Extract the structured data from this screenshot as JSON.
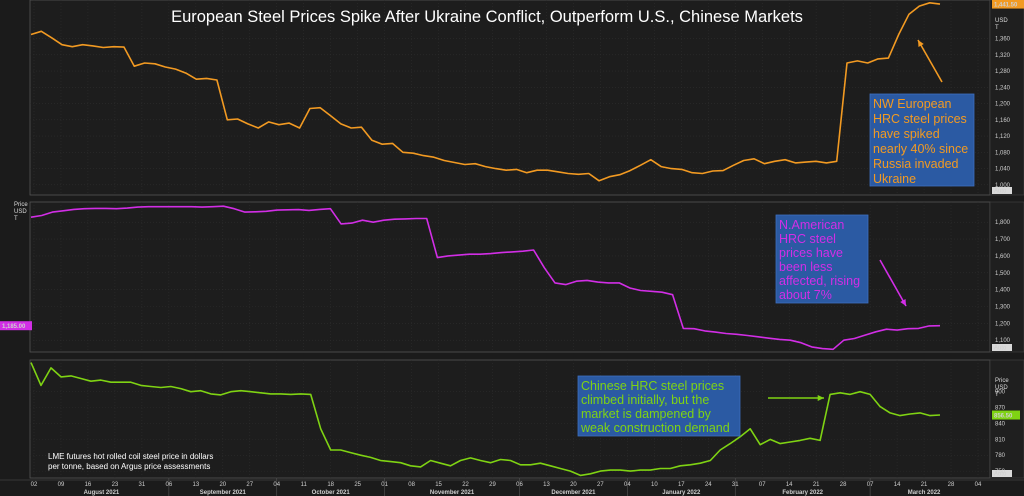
{
  "title": "European Steel Prices Spike After Ukraine Conflict, Outperform U.S., Chinese Markets",
  "footnote": [
    "LME futures hot rolled coil steel price in dollars",
    "per tonne, based on Argus price assessments"
  ],
  "x_axis": {
    "day_ticks": [
      "02",
      "09",
      "16",
      "23",
      "31",
      "06",
      "13",
      "20",
      "27",
      "04",
      "11",
      "18",
      "25",
      "01",
      "08",
      "15",
      "22",
      "29",
      "06",
      "13",
      "20",
      "27",
      "04",
      "10",
      "17",
      "24",
      "31",
      "07",
      "14",
      "21",
      "28",
      "07",
      "14",
      "21",
      "28",
      "04"
    ],
    "month_labels": [
      "August 2021",
      "September 2021",
      "October 2021",
      "November 2021",
      "December 2021",
      "January 2022",
      "February 2022",
      "March 2022"
    ]
  },
  "auto_label": "Auto",
  "colors": {
    "europe": "#f29a22",
    "us": "#d22ee6",
    "china": "#7fd313",
    "annotation_bg": "#2b5aa3",
    "title": "#ffffff"
  },
  "chart_data": [
    {
      "type": "line",
      "series": [
        {
          "values": [
            1370,
            1378,
            1362,
            1345,
            1340,
            1345,
            1342,
            1338,
            1340,
            1339,
            1292,
            1300,
            1298,
            1290,
            1285,
            1275,
            1260,
            1262,
            1258,
            1160,
            1162,
            1150,
            1140,
            1155,
            1148,
            1152,
            1140,
            1188,
            1190,
            1170,
            1150,
            1140,
            1142,
            1110,
            1100,
            1102,
            1080,
            1078,
            1072,
            1068,
            1060,
            1055,
            1050,
            1052,
            1045,
            1040,
            1036,
            1038,
            1030,
            1036,
            1036,
            1032,
            1028,
            1026,
            1028,
            1010,
            1020,
            1025,
            1035,
            1048,
            1062,
            1045,
            1040,
            1038,
            1030,
            1028,
            1034,
            1035,
            1048,
            1060,
            1064,
            1052,
            1058,
            1062,
            1054,
            1056,
            1058,
            1054,
            1058,
            1300,
            1305,
            1300,
            1310,
            1312,
            1370,
            1420,
            1440,
            1448,
            1445
          ]
        }
      ],
      "unit_label": [
        "USD",
        "T"
      ],
      "y_ticks": [
        1000,
        1040,
        1080,
        1120,
        1160,
        1200,
        1240,
        1280,
        1320,
        1360
      ],
      "ylim": [
        975,
        1455
      ],
      "last_value_label": "1,441.50",
      "annotation": [
        "NW European",
        "HRC steel prices",
        "have spiked",
        "nearly 40% since",
        "Russia invaded",
        "Ukraine"
      ]
    },
    {
      "type": "line",
      "series": [
        {
          "values": [
            1830,
            1840,
            1860,
            1868,
            1876,
            1880,
            1882,
            1882,
            1880,
            1884,
            1890,
            1892,
            1892,
            1892,
            1892,
            1892,
            1890,
            1892,
            1895,
            1880,
            1860,
            1862,
            1865,
            1872,
            1874,
            1875,
            1870,
            1876,
            1880,
            1790,
            1795,
            1812,
            1800,
            1812,
            1818,
            1820,
            1822,
            1822,
            1590,
            1600,
            1605,
            1610,
            1610,
            1614,
            1620,
            1624,
            1628,
            1635,
            1530,
            1440,
            1430,
            1450,
            1455,
            1445,
            1440,
            1440,
            1410,
            1395,
            1390,
            1385,
            1370,
            1170,
            1168,
            1155,
            1148,
            1140,
            1135,
            1128,
            1120,
            1112,
            1105,
            1100,
            1085,
            1060,
            1050,
            1046,
            1100,
            1110,
            1130,
            1150,
            1165,
            1160,
            1168,
            1170,
            1185,
            1186
          ]
        }
      ],
      "unit_label": [
        "Price",
        "USD",
        "T"
      ],
      "y_ticks": [
        1100,
        1200,
        1300,
        1400,
        1500,
        1600,
        1700,
        1800
      ],
      "ylim": [
        1030,
        1920
      ],
      "last_value_label": "1,185.00",
      "annotation": [
        "N.American",
        "HRC steel",
        "prices have",
        "been less",
        "affected, rising",
        "about 7%"
      ]
    },
    {
      "type": "line",
      "series": [
        {
          "values": [
            955,
            912,
            945,
            928,
            930,
            925,
            920,
            922,
            918,
            918,
            918,
            912,
            910,
            908,
            910,
            906,
            900,
            902,
            896,
            894,
            900,
            902,
            900,
            898,
            896,
            896,
            895,
            896,
            895,
            830,
            790,
            790,
            785,
            780,
            776,
            770,
            768,
            766,
            760,
            758,
            770,
            765,
            760,
            770,
            775,
            770,
            766,
            772,
            770,
            762,
            762,
            765,
            760,
            755,
            750,
            742,
            745,
            750,
            752,
            752,
            750,
            752,
            752,
            755,
            755,
            760,
            762,
            765,
            770,
            790,
            802,
            815,
            830,
            800,
            810,
            802,
            805,
            808,
            812,
            808,
            895,
            898,
            895,
            900,
            895,
            872,
            860,
            855,
            858,
            860,
            855,
            856
          ]
        }
      ],
      "unit_label": [
        "Price",
        "USD",
        "T"
      ],
      "y_ticks": [
        750,
        780,
        810,
        840,
        870,
        900
      ],
      "ylim": [
        737,
        960
      ],
      "last_value_label": "856.50",
      "annotation": [
        "Chinese HRC steel prices",
        "climbed initially, but the",
        "market is dampened by",
        "weak construction demand"
      ]
    }
  ]
}
